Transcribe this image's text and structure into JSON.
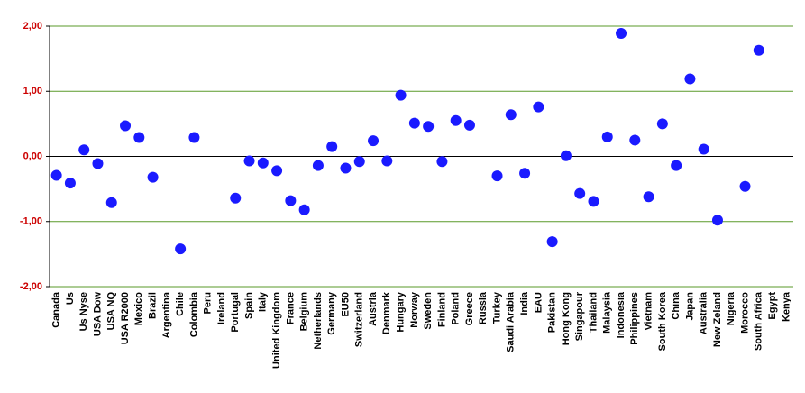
{
  "chart_data": {
    "type": "scatter",
    "categories": [
      "Canada",
      "Us",
      "Us Nyse",
      "USA Dow",
      "USA NQ",
      "USA R2000",
      "Mexico",
      "Brazil",
      "Argentina",
      "Chile",
      "Colombia",
      "Peru",
      "Ireland",
      "Portugal",
      "Spain",
      "Italy",
      "United Kingdom",
      "France",
      "Belgium",
      "Netherlands",
      "Germany",
      "EU50",
      "Switzerland",
      "Austria",
      "Denmark",
      "Hungary",
      "Norway",
      "Sweden",
      "Finland",
      "Poland",
      "Greece",
      "Russia",
      "Turkey",
      "Saudi Arabia",
      "India",
      "EAU",
      "Pakistan",
      "Hong Kong",
      "Singapour",
      "Thailand",
      "Malaysia",
      "Indonesia",
      "Philippines",
      "Vietnam",
      "South Korea",
      "China",
      "Japan",
      "Australia",
      "New Zeland",
      "Nigeria",
      "Morocco",
      "South Africa",
      "Egypt",
      "Kenya"
    ],
    "values": [
      -0.29,
      -0.41,
      0.1,
      -0.11,
      -0.71,
      0.47,
      0.29,
      -0.32,
      null,
      -1.42,
      0.29,
      null,
      null,
      -0.64,
      -0.07,
      -0.1,
      -0.22,
      -0.68,
      -0.82,
      -0.14,
      0.15,
      -0.18,
      -0.08,
      0.24,
      -0.07,
      0.94,
      0.51,
      0.46,
      -0.08,
      0.55,
      0.48,
      null,
      -0.3,
      0.64,
      -0.26,
      0.76,
      -1.31,
      0.01,
      -0.57,
      -0.69,
      0.3,
      1.89,
      0.25,
      -0.62,
      0.5,
      -0.14,
      1.19,
      0.11,
      -0.98,
      null,
      -0.46,
      1.63,
      null,
      null
    ],
    "color": "#1a1aff",
    "ylim": [
      -2,
      2
    ],
    "yticks": [
      {
        "value": -2,
        "label": "-2,00"
      },
      {
        "value": -1,
        "label": "-1,00"
      },
      {
        "value": 0,
        "label": "0,00"
      },
      {
        "value": 1,
        "label": "1,00"
      },
      {
        "value": 2,
        "label": "2,00"
      }
    ],
    "grid": true,
    "grid_color": "#5a9a2a",
    "tick_label_color": "#cc0000"
  }
}
